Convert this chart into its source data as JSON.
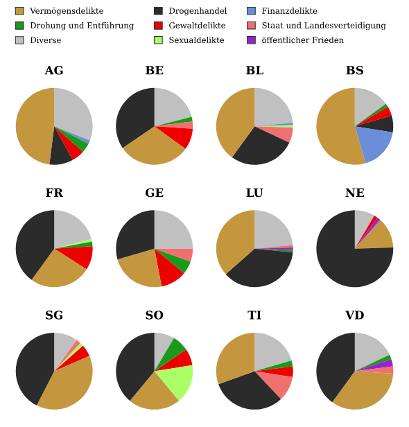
{
  "chart_data": [
    {
      "type": "other",
      "categories": [
        "Vermögensdelikte",
        "Drohung und Entführung",
        "Diverse",
        "Drogenhandel",
        "Gewaltdelikte",
        "Sexualdelikte",
        "Finanzdelikte",
        "Staat und Landesverteidigung",
        "öffentlicher Frieden"
      ],
      "colors": [
        "#c4973f",
        "#1a9a1a",
        "#c0c0c0",
        "#2b2b2b",
        "#ee0000",
        "#aaff66",
        "#6a8fd8",
        "#f07070",
        "#9922cc"
      ]
    },
    {
      "type": "pie",
      "title": "AG",
      "categories": [
        null,
        null,
        null,
        null,
        null,
        null
      ],
      "values": [
        31,
        1.5,
        4,
        5.5,
        10,
        48
      ],
      "colors": [
        "#c0c0c0",
        "#6a8fd8",
        "#1a9a1a",
        "#ee0000",
        "#2b2b2b",
        "#c4973f"
      ]
    },
    {
      "type": "pie",
      "title": "BE",
      "categories": [
        null,
        null,
        null,
        null,
        null,
        null
      ],
      "values": [
        21,
        2,
        3,
        9,
        30.5,
        34.5
      ],
      "colors": [
        "#c0c0c0",
        "#1a9a1a",
        "#f07070",
        "#ee0000",
        "#c4973f",
        "#2b2b2b"
      ]
    },
    {
      "type": "pie",
      "title": "BL",
      "categories": [
        null,
        null,
        null,
        null,
        null,
        null
      ],
      "values": [
        23.5,
        1,
        1,
        6.5,
        28,
        40
      ],
      "colors": [
        "#c0c0c0",
        "#6a8fd8",
        "#aaff66",
        "#f07070",
        "#2b2b2b",
        "#c4973f"
      ]
    },
    {
      "type": "pie",
      "title": "BS",
      "categories": [
        null,
        null,
        null,
        null,
        null,
        null
      ],
      "values": [
        15,
        1.5,
        4,
        7,
        18,
        54.5
      ],
      "colors": [
        "#c0c0c0",
        "#1a9a1a",
        "#ee0000",
        "#2b2b2b",
        "#6a8fd8",
        "#c4973f"
      ]
    },
    {
      "type": "pie",
      "title": "FR",
      "categories": [
        null,
        null,
        null,
        null,
        null,
        null
      ],
      "values": [
        21,
        1,
        2,
        10,
        26,
        40
      ],
      "colors": [
        "#c0c0c0",
        "#aaff66",
        "#1a9a1a",
        "#ee0000",
        "#c4973f",
        "#2b2b2b"
      ]
    },
    {
      "type": "pie",
      "title": "GE",
      "categories": [
        null,
        null,
        null,
        null,
        null,
        null
      ],
      "values": [
        25,
        5.5,
        5.5,
        11,
        23.5,
        29.5
      ],
      "colors": [
        "#c0c0c0",
        "#f07070",
        "#1a9a1a",
        "#ee0000",
        "#c4973f",
        "#2b2b2b"
      ]
    },
    {
      "type": "pie",
      "title": "LU",
      "categories": [
        null,
        null,
        null,
        null,
        null,
        null
      ],
      "values": [
        23.5,
        1,
        1,
        1,
        37,
        36.5
      ],
      "colors": [
        "#c0c0c0",
        "#f07070",
        "#9922cc",
        "#1a9a1a",
        "#2b2b2b",
        "#c4973f"
      ]
    },
    {
      "type": "pie",
      "title": "NE",
      "categories": [
        null,
        null,
        null,
        null,
        null
      ],
      "values": [
        8.5,
        1.5,
        1.5,
        13,
        75.5
      ],
      "colors": [
        "#c0c0c0",
        "#ee0000",
        "#9922cc",
        "#c4973f",
        "#2b2b2b"
      ]
    },
    {
      "type": "pie",
      "title": "SG",
      "categories": [
        null,
        null,
        null,
        null,
        null,
        null
      ],
      "values": [
        10,
        2,
        1.5,
        5,
        39,
        42.5
      ],
      "colors": [
        "#c0c0c0",
        "#f07070",
        "#aaff66",
        "#ee0000",
        "#c4973f",
        "#2b2b2b"
      ]
    },
    {
      "type": "pie",
      "title": "SO",
      "categories": [
        null,
        null,
        null,
        null,
        null,
        null
      ],
      "values": [
        8.5,
        7,
        7,
        16.5,
        22,
        39
      ],
      "colors": [
        "#c0c0c0",
        "#1a9a1a",
        "#ee0000",
        "#aaff66",
        "#c4973f",
        "#2b2b2b"
      ]
    },
    {
      "type": "pie",
      "title": "TI",
      "categories": [
        null,
        null,
        null,
        null,
        null,
        null
      ],
      "values": [
        20.5,
        2.5,
        4.5,
        10.5,
        31.5,
        30.5
      ],
      "colors": [
        "#c0c0c0",
        "#1a9a1a",
        "#ee0000",
        "#f07070",
        "#2b2b2b",
        "#c4973f"
      ]
    },
    {
      "type": "pie",
      "title": "VD",
      "categories": [
        null,
        null,
        null,
        null,
        null,
        null
      ],
      "values": [
        18,
        2,
        3,
        3,
        34,
        40
      ],
      "colors": [
        "#c0c0c0",
        "#1a9a1a",
        "#9922cc",
        "#f07070",
        "#c4973f",
        "#2b2b2b"
      ]
    }
  ]
}
